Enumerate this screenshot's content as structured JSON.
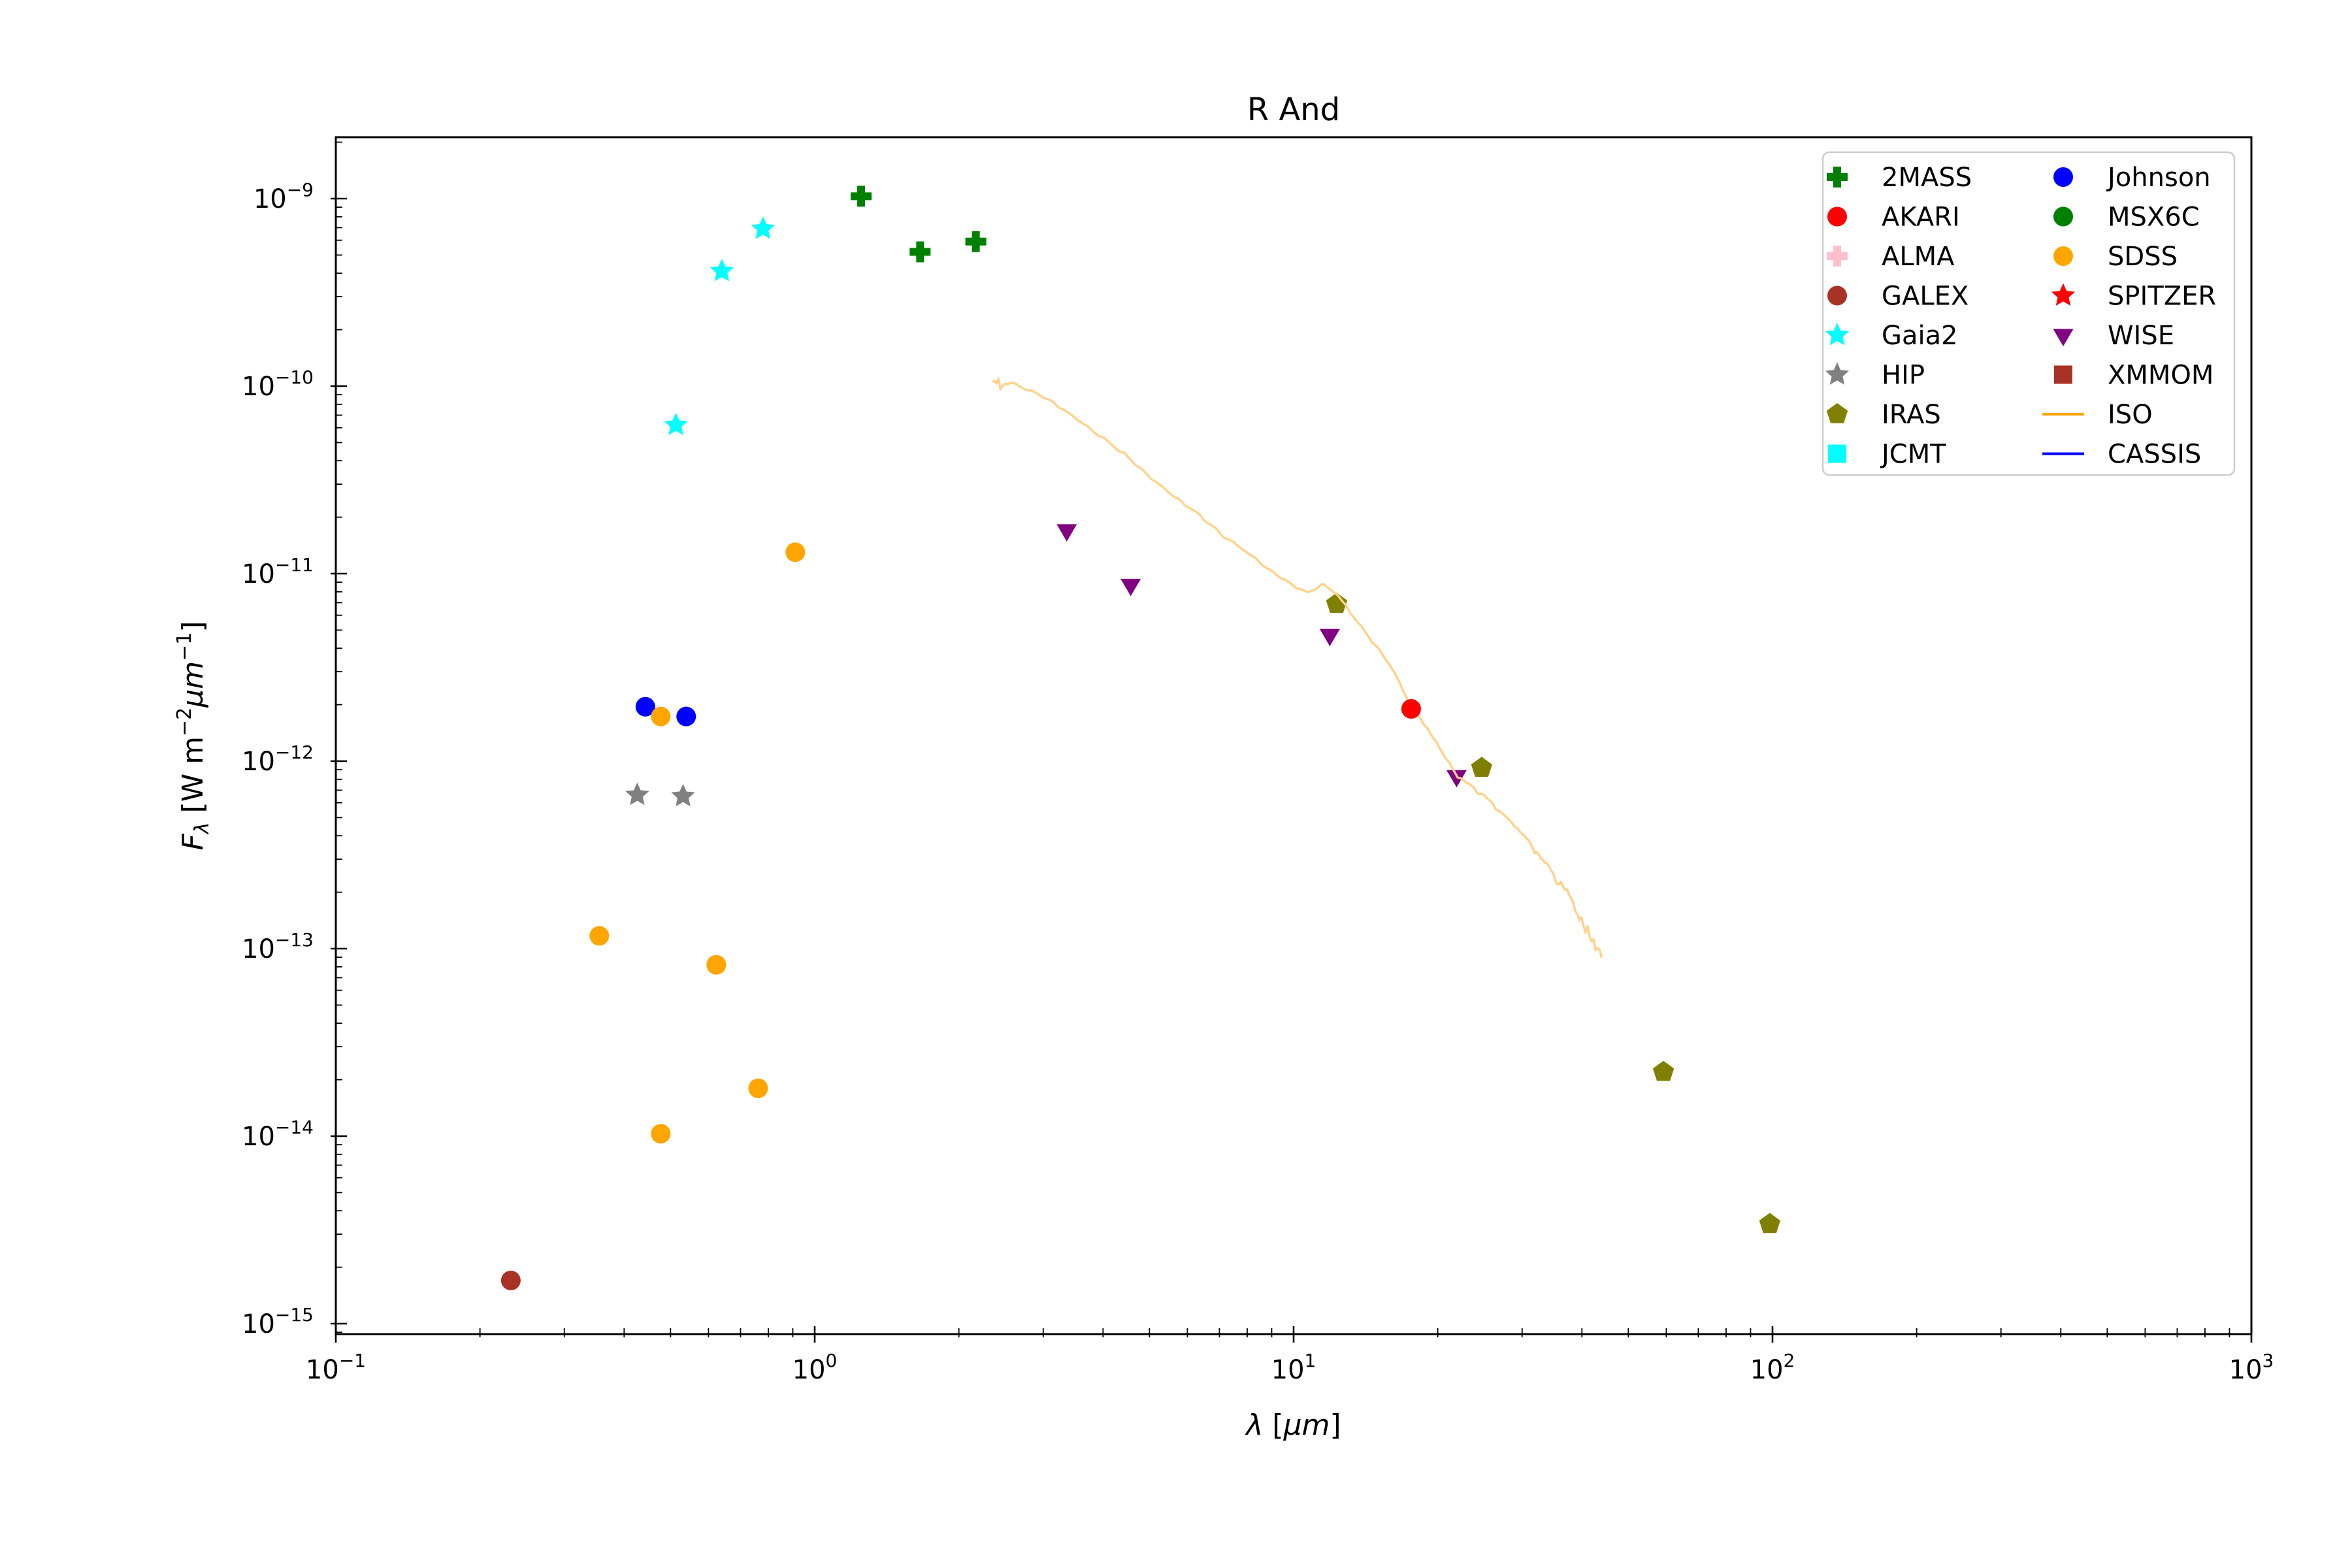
{
  "title": "R And",
  "chart_data": {
    "type": "scatter",
    "title": "R And",
    "xlabel": "λ [μm]",
    "ylabel": "F_λ [W m−2 μm−1]",
    "xscale": "log",
    "yscale": "log",
    "xlim": [
      0.1,
      1000
    ],
    "ylim": [
      8.7e-16,
      2.1e-09
    ],
    "x_tick_exponents": [
      -1,
      0,
      1,
      2,
      3
    ],
    "y_tick_exponents": [
      -9,
      -10,
      -11,
      -12,
      -13,
      -14,
      -15
    ],
    "grid": false,
    "legend_position": "upper right",
    "legend_columns": 2,
    "series": [
      {
        "name": "2MASS",
        "marker": "plus",
        "color": "#008000",
        "points": [
          [
            1.25,
            1.03e-09
          ],
          [
            1.66,
            5.2e-10
          ],
          [
            2.17,
            5.9e-10
          ]
        ]
      },
      {
        "name": "AKARI",
        "marker": "circle",
        "color": "#ff0000",
        "points": [
          [
            17.6,
            1.9e-12
          ]
        ]
      },
      {
        "name": "ALMA",
        "marker": "plus",
        "color": "#ffc0cb",
        "points": []
      },
      {
        "name": "GALEX",
        "marker": "circle",
        "color": "#a93226",
        "points": [
          [
            0.232,
            1.7e-15
          ]
        ]
      },
      {
        "name": "Gaia2",
        "marker": "star",
        "color": "#00ffff",
        "points": [
          [
            0.513,
            6.2e-11
          ],
          [
            0.64,
            4.1e-10
          ],
          [
            0.78,
            6.9e-10
          ]
        ]
      },
      {
        "name": "HIP",
        "marker": "star",
        "color": "#808080",
        "points": [
          [
            0.426,
            6.6e-13
          ],
          [
            0.531,
            6.5e-13
          ]
        ]
      },
      {
        "name": "IRAS",
        "marker": "pentagon",
        "color": "#808000",
        "points": [
          [
            12.3,
            6.9e-12
          ],
          [
            24.7,
            9.2e-13
          ],
          [
            59.2,
            2.2e-14
          ],
          [
            98.7,
            3.4e-15
          ]
        ]
      },
      {
        "name": "JCMT",
        "marker": "square",
        "color": "#00ffff",
        "points": []
      },
      {
        "name": "Johnson",
        "marker": "circle",
        "color": "#0000ff",
        "points": [
          [
            0.443,
            1.95e-12
          ],
          [
            0.539,
            1.73e-12
          ]
        ]
      },
      {
        "name": "MSX6C",
        "marker": "circle",
        "color": "#008000",
        "points": []
      },
      {
        "name": "SDSS",
        "marker": "circle",
        "color": "#ffa500",
        "points": [
          [
            0.355,
            1.17e-13
          ],
          [
            0.477,
            1.73e-12
          ],
          [
            0.477,
            1.03e-14
          ],
          [
            0.623,
            8.2e-14
          ],
          [
            0.762,
            1.8e-14
          ],
          [
            0.911,
            1.3e-11
          ]
        ]
      },
      {
        "name": "SPITZER",
        "marker": "star",
        "color": "#ff0000",
        "points": []
      },
      {
        "name": "WISE",
        "marker": "triangle_down",
        "color": "#800080",
        "points": [
          [
            3.36,
            1.7e-11
          ],
          [
            4.57,
            8.7e-12
          ],
          [
            11.9,
            4.7e-12
          ],
          [
            21.9,
            8.3e-13
          ]
        ]
      },
      {
        "name": "XMMOM",
        "marker": "square",
        "color": "#a93226",
        "points": []
      },
      {
        "name": "ISO",
        "marker": "line",
        "color": "#ffd28a",
        "legend_color": "#ffa500",
        "anchors": [
          [
            2.35,
            1e-10
          ],
          [
            2.57,
            1.05e-10
          ],
          [
            3.0,
            8.8e-11
          ],
          [
            3.5,
            6.8e-11
          ],
          [
            4.0,
            5.3e-11
          ],
          [
            4.5,
            4.2e-11
          ],
          [
            5.0,
            3.3e-11
          ],
          [
            5.6,
            2.6e-11
          ],
          [
            6.3,
            2.1e-11
          ],
          [
            7.1,
            1.6e-11
          ],
          [
            8.0,
            1.3e-11
          ],
          [
            9.0,
            1.02e-11
          ],
          [
            10.0,
            8.6e-12
          ],
          [
            10.7,
            7.9e-12
          ],
          [
            11.5,
            8.8e-12
          ],
          [
            12.3,
            7.8e-12
          ],
          [
            14.0,
            5e-12
          ],
          [
            16.0,
            3.2e-12
          ],
          [
            17.7,
            1.9e-12
          ],
          [
            19.0,
            1.5e-12
          ],
          [
            22.0,
            8.3e-13
          ],
          [
            24.5,
            6.8e-13
          ],
          [
            27.0,
            5.4e-13
          ],
          [
            30.0,
            4.1e-13
          ],
          [
            33.0,
            3.1e-13
          ],
          [
            35.0,
            2.4e-13
          ],
          [
            37.5,
            1.95e-13
          ],
          [
            40.0,
            1.4e-13
          ],
          [
            42.0,
            1.1e-13
          ],
          [
            44.0,
            8.8e-14
          ]
        ]
      },
      {
        "name": "CASSIS",
        "marker": "line",
        "color": "#0000ff",
        "legend_color": "#0000ff",
        "anchors": []
      }
    ],
    "legend_order": [
      "2MASS",
      "AKARI",
      "ALMA",
      "GALEX",
      "Gaia2",
      "HIP",
      "IRAS",
      "JCMT",
      "Johnson",
      "MSX6C",
      "SDSS",
      "SPITZER",
      "WISE",
      "XMMOM",
      "ISO",
      "CASSIS"
    ]
  }
}
